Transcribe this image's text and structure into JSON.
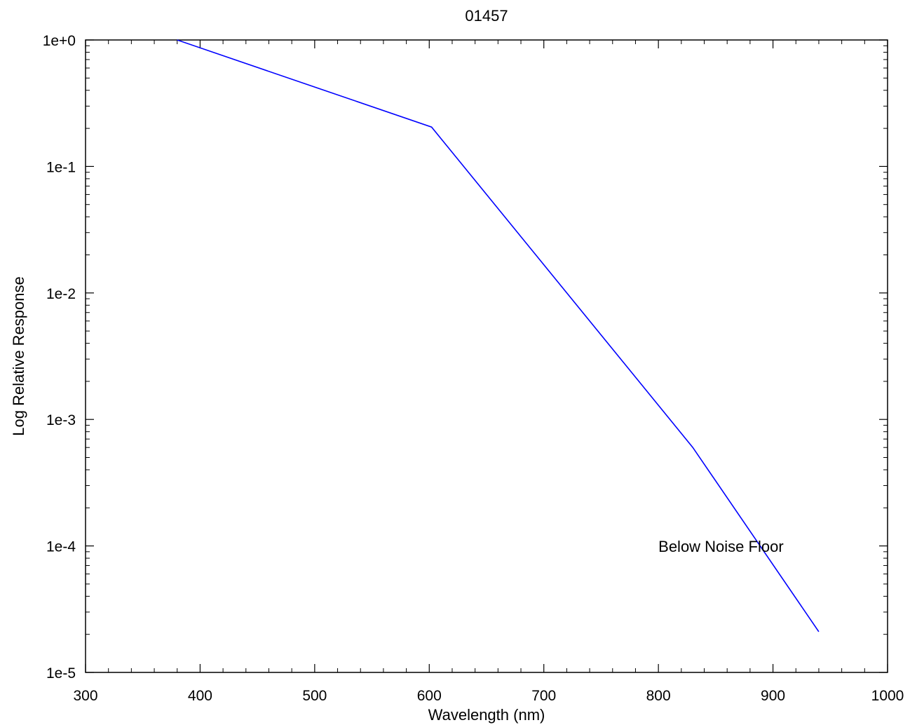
{
  "chart_data": {
    "type": "line",
    "title": "01457",
    "xlabel": "Wavelength (nm)",
    "ylabel": "Log Relative Response",
    "xlim": [
      300,
      1000
    ],
    "ylim": [
      1e-05,
      1
    ],
    "yscale": "log",
    "grid": false,
    "x_ticks": [
      300,
      400,
      500,
      600,
      700,
      800,
      900,
      1000
    ],
    "x_tick_labels": [
      "300",
      "400",
      "500",
      "600",
      "700",
      "800",
      "900",
      "1000"
    ],
    "y_ticks": [
      1,
      0.1,
      0.01,
      0.001,
      0.0001,
      1e-05
    ],
    "y_tick_labels": [
      "1e+0",
      "1e-1",
      "1e-2",
      "1e-3",
      "1e-4",
      "1e-5"
    ],
    "series": [
      {
        "color": "#0000ff",
        "x": [
          380,
          602,
          830,
          940
        ],
        "y": [
          1.0,
          0.205,
          0.0006,
          2.1e-05
        ]
      }
    ],
    "annotations": [
      {
        "text": "Below Noise Floor",
        "x": 800,
        "y": 9e-05
      }
    ]
  }
}
